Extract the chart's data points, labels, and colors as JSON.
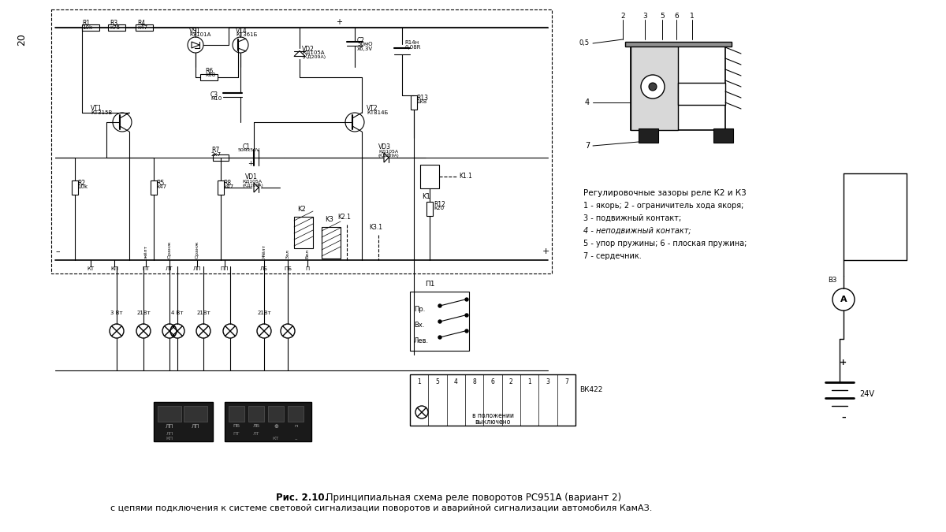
{
  "background_color": "#ffffff",
  "page_number": "20",
  "caption_bold": "Рис. 2.10.",
  "caption_text": " Принципиальная схема реле поворотов РС951А (вариант 2)",
  "caption_line2": "с цепями подключения к системе световой сигнализации поворотов и аварийной сигнализации автомобиля КамАЗ.",
  "relay_title": "Регулировочные зазоры реле К2 и К3",
  "relay_items": [
    "1 - якорь; 2 - ограничитель хода якоря;",
    "3 - подвижный контакт;",
    "4 - неподвижный контакт;",
    "5 - упор пружины; 6 - плоская пружина;",
    "7 - сердечник."
  ],
  "fig_width": 12.0,
  "fig_height": 6.75,
  "dpi": 100
}
